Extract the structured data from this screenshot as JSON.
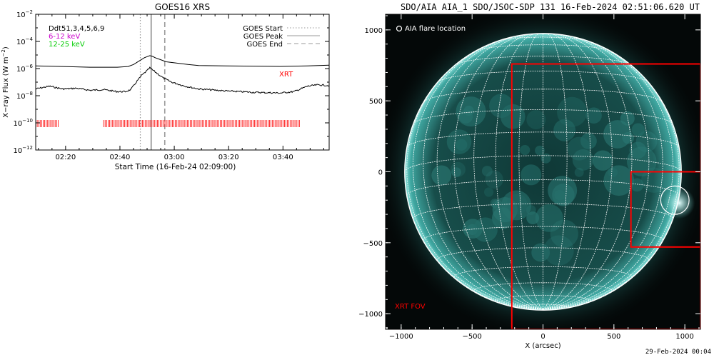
{
  "chart_data": [
    {
      "type": "line",
      "title": "GOES16 XRS",
      "xlabel": "Start Time (16-Feb-24 02:09:00)",
      "ylabel": "X-ray Flux (W m^-2)",
      "x_ticks": [
        "02:20",
        "02:40",
        "03:00",
        "03:20",
        "03:40"
      ],
      "x_tick_minutes": [
        11,
        31,
        51,
        71,
        91
      ],
      "xlim_minutes": [
        0,
        108
      ],
      "y_ticks": [
        "10^-2",
        "10^-4",
        "10^-6",
        "10^-8",
        "10^-10",
        "10^-12"
      ],
      "y_tick_exponents": [
        -2,
        -4,
        -6,
        -8,
        -10,
        -12
      ],
      "ylim": [
        -12,
        -2
      ],
      "y_scale": "log",
      "legend_left": [
        {
          "label": "Ddt51,3,4,5,6,9",
          "color": "#000000"
        },
        {
          "label": "6-12 keV",
          "color": "#cc00cc"
        },
        {
          "label": "12-25 keV",
          "color": "#00cc00"
        }
      ],
      "legend_right": [
        {
          "label": "GOES Start",
          "style": "dotted",
          "color": "#999999"
        },
        {
          "label": "GOES Peak",
          "style": "solid",
          "color": "#999999"
        },
        {
          "label": "GOES End",
          "style": "dashed",
          "color": "#999999"
        }
      ],
      "annotation": {
        "label": "XRT",
        "color": "#ff0000"
      },
      "event_lines_minutes": {
        "start": 38.5,
        "peak": 42.5,
        "end": 47.5
      },
      "series": [
        {
          "name": "long",
          "color": "#000000",
          "x": [
            0,
            10,
            20,
            30,
            34,
            36,
            38,
            40,
            42,
            43,
            44,
            46,
            48,
            52,
            56,
            60,
            70,
            80,
            90,
            100,
            108
          ],
          "y": [
            -5.8,
            -5.85,
            -5.9,
            -5.9,
            -5.85,
            -5.7,
            -5.45,
            -5.2,
            -5.05,
            -5.1,
            -5.2,
            -5.35,
            -5.5,
            -5.6,
            -5.7,
            -5.78,
            -5.8,
            -5.82,
            -5.84,
            -5.8,
            -5.75
          ]
        },
        {
          "name": "short",
          "color": "#000000",
          "x": [
            0,
            5,
            10,
            15,
            20,
            25,
            30,
            33,
            35,
            37,
            39,
            41,
            42,
            43,
            45,
            47,
            50,
            55,
            60,
            70,
            80,
            90,
            95,
            100,
            104,
            108
          ],
          "y": [
            -7.5,
            -7.3,
            -7.5,
            -7.45,
            -7.6,
            -7.55,
            -7.7,
            -7.7,
            -7.55,
            -7.0,
            -6.5,
            -6.15,
            -5.95,
            -6.1,
            -6.4,
            -6.7,
            -7.0,
            -7.3,
            -7.5,
            -7.65,
            -7.75,
            -7.8,
            -7.7,
            -7.3,
            -7.2,
            -7.25
          ]
        }
      ],
      "xrt_coverage_minutes": [
        [
          0,
          8.5
        ],
        [
          25,
          97.5
        ]
      ]
    },
    {
      "type": "scatter",
      "title": "SDO/AIA AIA_1 SDO/JSOC-SDP 131 16-Feb-2024 02:51:06.620 UT",
      "xlabel": "X (arcsec)",
      "ylabel": "",
      "x_ticks": [
        -1000,
        -500,
        0,
        500,
        1000
      ],
      "y_ticks": [
        1000,
        500,
        0,
        -500,
        -1000
      ],
      "xlim": [
        -1110,
        1110
      ],
      "ylim": [
        -1110,
        1110
      ],
      "solar_radius_arcsec": 975,
      "legend_label": "AIA flare location",
      "fov_label": "XRT FOV",
      "fov_color": "#ff0000",
      "flare_location": [
        930,
        -200
      ],
      "flare_circle_radius_arcsec": 100,
      "fov_boxes": [
        {
          "x0": -220,
          "x1": 1110,
          "y0": -1110,
          "y1": 760
        },
        {
          "x0": 620,
          "x1": 1110,
          "y0": -530,
          "y1": 0
        }
      ]
    }
  ],
  "footer": {
    "timestamp": "29-Feb-2024 00:04"
  }
}
